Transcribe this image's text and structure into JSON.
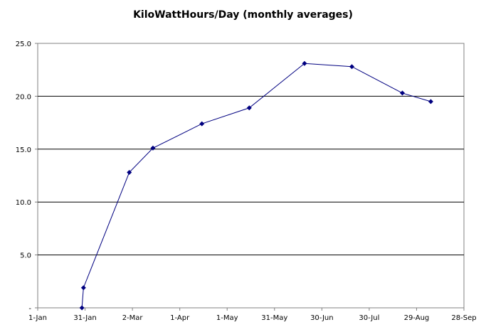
{
  "chart_data": {
    "type": "line",
    "title": "KiloWattHours/Day (monthly averages)",
    "xlabel": "",
    "ylabel": "",
    "ylim": [
      0,
      25
    ],
    "y_ticks": [
      "-",
      "5.0",
      "10.0",
      "15.0",
      "20.0",
      "25.0"
    ],
    "x_ticks": [
      "1-Jan",
      "31-Jan",
      "2-Mar",
      "1-Apr",
      "1-May",
      "31-May",
      "30-Jun",
      "30-Jul",
      "29-Aug",
      "28-Sep"
    ],
    "x_range_days": [
      0,
      270
    ],
    "grid": "horizontal",
    "line_color": "#000080",
    "series": [
      {
        "x": [
          "29-Jan",
          "30-Jan",
          "28-Feb",
          "15-Mar",
          "15-Apr",
          "15-May",
          "19-Jun",
          "19-Jul",
          "20-Aug",
          "7-Sep"
        ],
        "x_days": [
          28,
          29,
          58,
          73,
          104,
          134,
          169,
          199,
          231,
          249
        ],
        "values": [
          0.0,
          1.9,
          12.8,
          15.1,
          17.4,
          18.9,
          23.1,
          22.8,
          20.3,
          19.5
        ]
      }
    ]
  }
}
